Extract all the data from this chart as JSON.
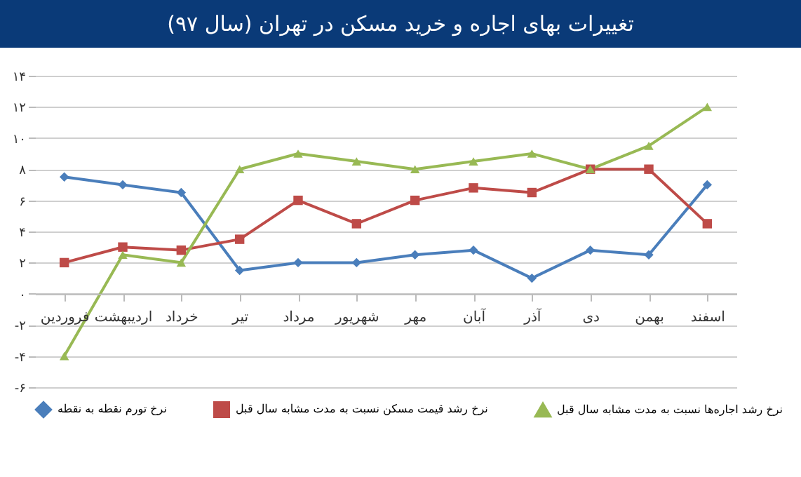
{
  "chart_data": {
    "type": "line",
    "title": "تغییرات بهای اجاره و خرید مسکن در تهران (سال ۹۷)",
    "categories": [
      "فروردین",
      "اردیبهشت",
      "خرداد",
      "تیر",
      "مرداد",
      "شهریور",
      "مهر",
      "آبان",
      "آذر",
      "دی",
      "بهمن",
      "اسفند"
    ],
    "series": [
      {
        "name": "نرخ تورم نقطه به نقطه",
        "color": "#4a7ebb",
        "marker": "diamond",
        "values": [
          7.5,
          7,
          6.5,
          1.5,
          2,
          2,
          2.5,
          2.8,
          1,
          2.8,
          2.5,
          7
        ]
      },
      {
        "name": "نرخ رشد قیمت مسکن نسبت به مدت مشابه سال قبل",
        "color": "#be4b48",
        "marker": "square",
        "values": [
          2,
          3,
          2.8,
          3.5,
          6,
          4.5,
          6,
          6.8,
          6.5,
          8,
          8,
          4.5
        ]
      },
      {
        "name": "نرخ رشد اجاره‌ها نسبت به مدت مشابه سال قبل",
        "color": "#98b954",
        "marker": "triangle",
        "values": [
          -4,
          2.5,
          2,
          8,
          9,
          8.5,
          8,
          8.5,
          9,
          8,
          9.5,
          12
        ]
      }
    ],
    "ylim": [
      -6,
      14
    ],
    "yticks": [
      {
        "value": -6,
        "label": "-۶"
      },
      {
        "value": -4,
        "label": "-۴"
      },
      {
        "value": -2,
        "label": "-۲"
      },
      {
        "value": 0,
        "label": "۰"
      },
      {
        "value": 2,
        "label": "۲"
      },
      {
        "value": 4,
        "label": "۴"
      },
      {
        "value": 6,
        "label": "۶"
      },
      {
        "value": 8,
        "label": "۸"
      },
      {
        "value": 10,
        "label": "۱۰"
      },
      {
        "value": 12,
        "label": "۱۲"
      },
      {
        "value": 14,
        "label": "۱۴"
      }
    ],
    "grid": "y",
    "legend": "bottom",
    "line_style": "solid"
  }
}
